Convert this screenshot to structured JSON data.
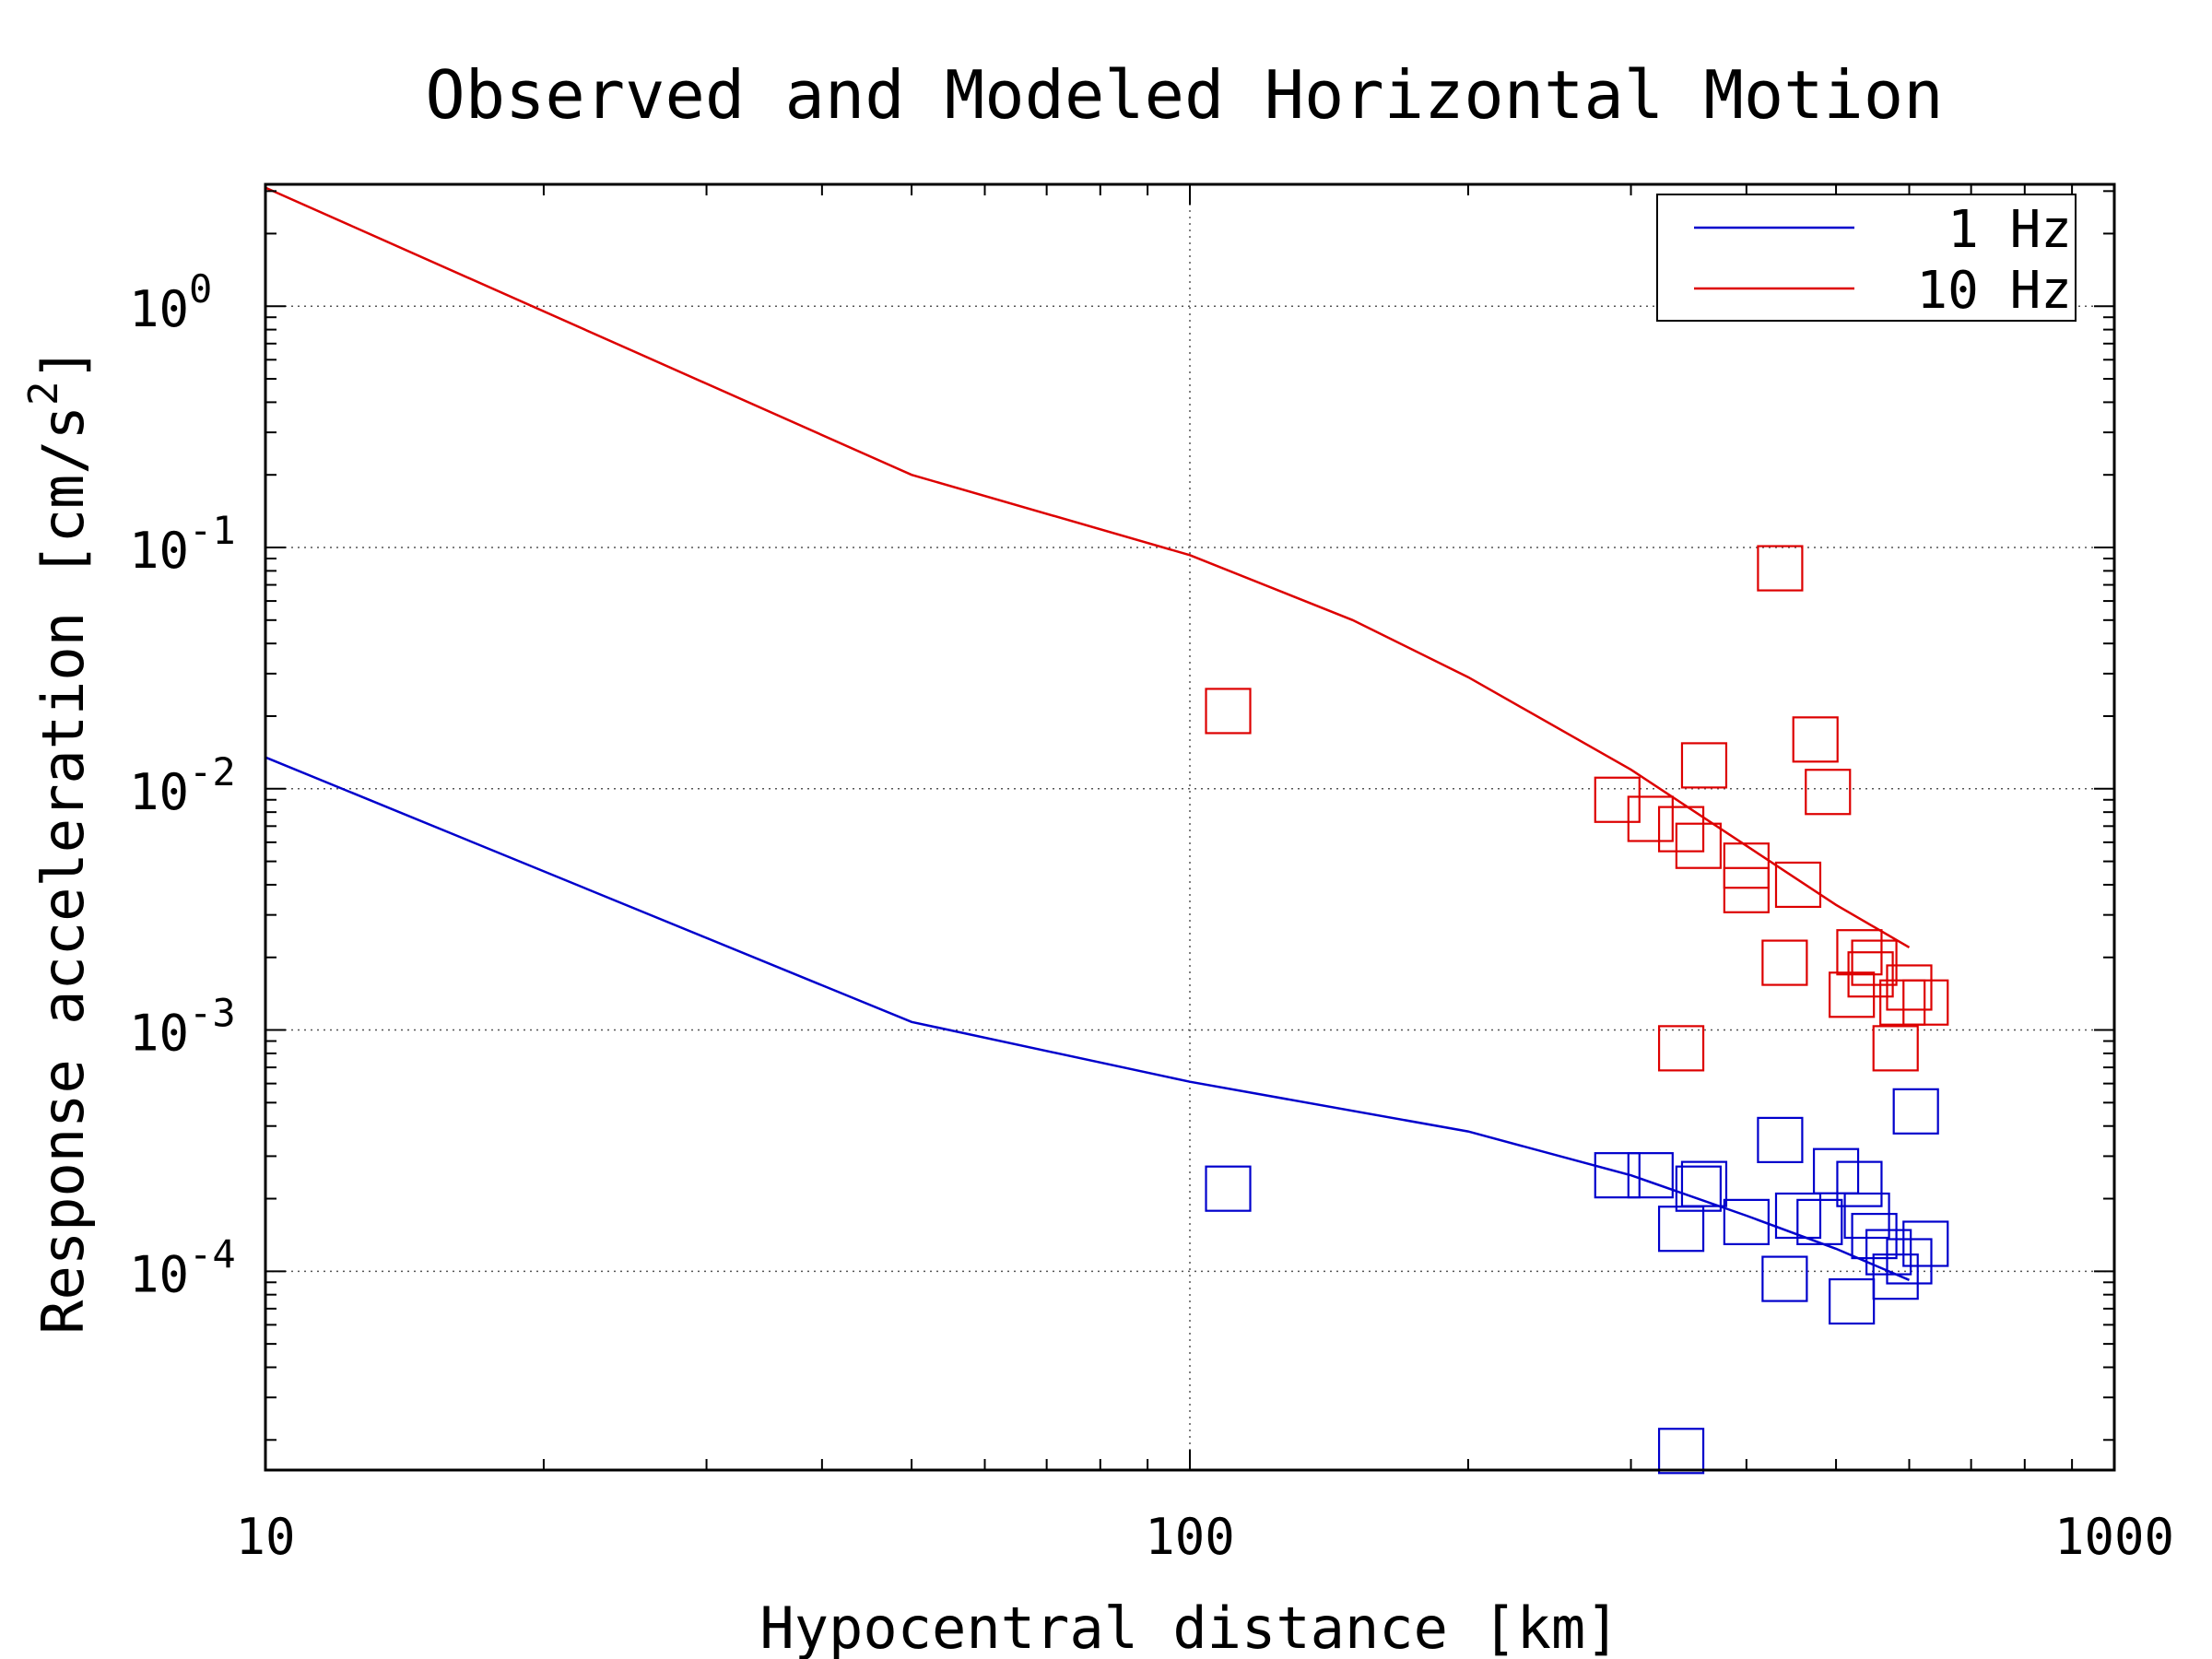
{
  "chart_data": {
    "type": "scatter",
    "title": "Observed and Modeled Horizontal Motion",
    "xlabel": "Hypocentral distance [km]",
    "ylabel": "Response acceleration [cm/s",
    "ylabel_sup": "2",
    "ylabel_end": "]",
    "x_scale": "log",
    "y_scale": "log",
    "xlim": [
      10,
      1000
    ],
    "ylim": [
      1.5e-05,
      3.2
    ],
    "x_ticks": [
      {
        "value": 10,
        "label": "10"
      },
      {
        "value": 100,
        "label": "100"
      },
      {
        "value": 1000,
        "label": "1000"
      }
    ],
    "y_ticks": [
      {
        "value": 1,
        "base": "10",
        "exp": "0"
      },
      {
        "value": 0.1,
        "base": "10",
        "exp": "-1"
      },
      {
        "value": 0.01,
        "base": "10",
        "exp": "-2"
      },
      {
        "value": 0.001,
        "base": "10",
        "exp": "-3"
      },
      {
        "value": 0.0001,
        "base": "10",
        "exp": "-4"
      }
    ],
    "grid": true,
    "legend": {
      "placement": "top-right",
      "entries": [
        {
          "label": "1 Hz",
          "color": "#0000cc"
        },
        {
          "label": "10 Hz",
          "color": "#dd0000"
        }
      ]
    },
    "series": [
      {
        "name": "1 Hz",
        "color": "#0000cc",
        "model_curve": {
          "x": [
            10,
            50,
            100,
            200,
            300,
            400,
            500,
            600
          ],
          "y": [
            0.0135,
            0.00108,
            0.00061,
            0.00038,
            0.00025,
            0.00017,
            0.000124,
            9.2e-05
          ]
        },
        "observations": {
          "x": [
            110,
            290,
            315,
            340,
            355,
            360,
            400,
            435,
            440,
            455,
            480,
            500,
            520,
            530,
            540,
            550,
            570,
            580,
            600,
            610,
            625,
            340
          ],
          "y": [
            0.00022,
            0.00025,
            0.00025,
            0.00015,
            0.00022,
            0.00023,
            0.00016,
            0.00035,
            9.3e-05,
            0.00017,
            0.00016,
            0.00026,
            7.5e-05,
            0.00023,
            0.00017,
            0.00014,
            0.00012,
            9.5e-05,
            0.00011,
            0.00046,
            0.00013,
            1.8e-05
          ]
        }
      },
      {
        "name": "10 Hz",
        "color": "#dd0000",
        "model_curve": {
          "x": [
            10,
            50,
            100,
            150,
            200,
            300,
            400,
            500,
            600
          ],
          "y": [
            3.1,
            0.2,
            0.093,
            0.05,
            0.029,
            0.012,
            0.0058,
            0.0033,
            0.0022
          ]
        },
        "observations": {
          "x": [
            110,
            290,
            315,
            340,
            355,
            360,
            400,
            400,
            435,
            440,
            455,
            475,
            490,
            520,
            530,
            545,
            550,
            580,
            590,
            600,
            625,
            340
          ],
          "y": [
            0.021,
            0.009,
            0.0075,
            0.0068,
            0.0058,
            0.0125,
            0.0048,
            0.0038,
            0.082,
            0.0019,
            0.004,
            0.016,
            0.0097,
            0.0014,
            0.0021,
            0.0017,
            0.0019,
            0.00084,
            0.0013,
            0.0015,
            0.0013,
            0.00084
          ]
        }
      }
    ]
  }
}
